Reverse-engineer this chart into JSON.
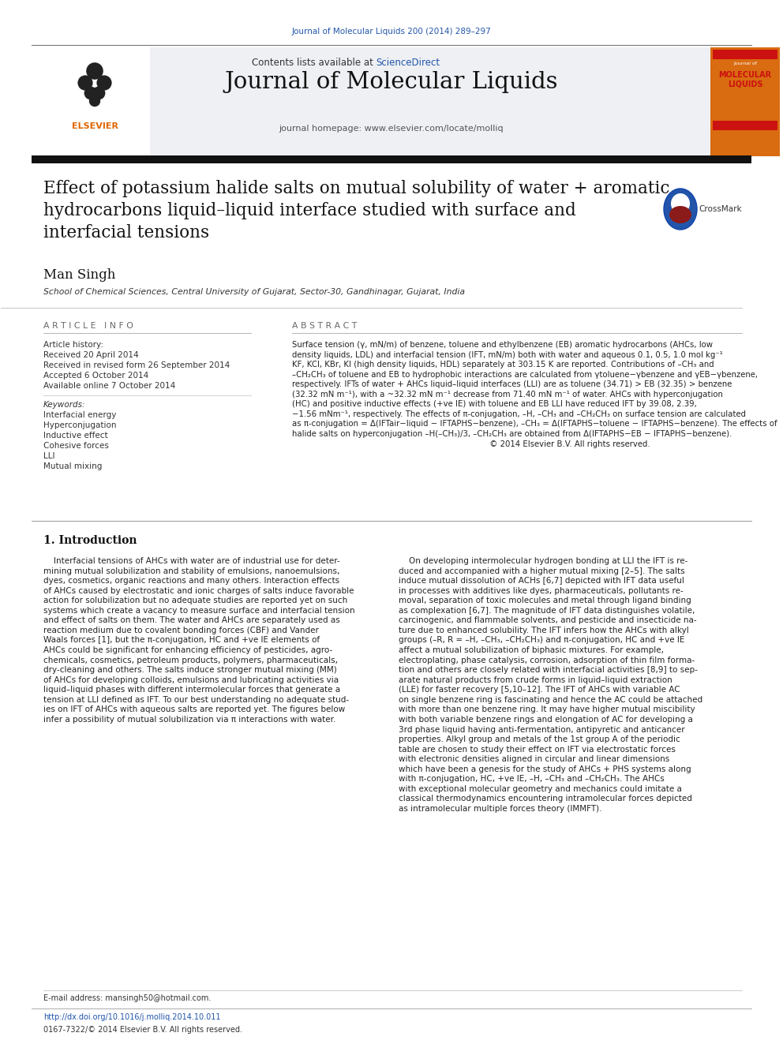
{
  "page_width": 9.92,
  "page_height": 13.23,
  "bg_color": "#ffffff",
  "top_citation": "Journal of Molecular Liquids 200 (2014) 289–297",
  "top_citation_color": "#2255aa",
  "journal_name": "Journal of Molecular Liquids",
  "contents_text": "Contents lists available at ",
  "sciencedirect_text": "ScienceDirect",
  "homepage_text": "journal homepage: www.elsevier.com/locate/molliq",
  "header_bg_color": "#eef0f4",
  "orange_bar_color": "#d96b10",
  "thick_bar_color": "#222222",
  "article_title": "Effect of potassium halide salts on mutual solubility of water + aromatic\nhydrocarbons liquid–liquid interface studied with surface and\ninterfacial tensions",
  "author_name": "Man Singh",
  "affiliation": "School of Chemical Sciences, Central University of Gujarat, Sector-30, Gandhinagar, Gujarat, India",
  "article_info_header": "A R T I C L E   I N F O",
  "abstract_header": "A B S T R A C T",
  "article_history_label": "Article history:",
  "received_1": "Received 20 April 2014",
  "received_2": "Received in revised form 26 September 2014",
  "accepted": "Accepted 6 October 2014",
  "available": "Available online 7 October 2014",
  "keywords_label": "Keywords:",
  "keywords": [
    "Interfacial energy",
    "Hyperconjugation",
    "Inductive effect",
    "Cohesive forces",
    "LLI",
    "Mutual mixing"
  ],
  "abstract_text": "Surface tension (γ, mN/m) of benzene, toluene and ethylbenzene (EB) aromatic hydrocarbons (AHCs, low\ndensity liquids, LDL) and interfacial tension (IFT, mN/m) both with water and aqueous 0.1, 0.5, 1.0 mol kg⁻¹\nKF, KCl, KBr, KI (high density liquids, HDL) separately at 303.15 K are reported. Contributions of –CH₃ and\n–CH₂CH₃ of toluene and EB to hydrophobic interactions are calculated from γtoluene−γbenzene and γEB−γbenzene,\nrespectively. IFTs of water + AHCs liquid–liquid interfaces (LLI) are as toluene (34.71) > EB (32.35) > benzene\n(32.32 mN m⁻¹), with a ~32.32 mN m⁻¹ decrease from 71.40 mN m⁻¹ of water. AHCs with hyperconjugation\n(HC) and positive inductive effects (+ve IE) with toluene and EB LLI have reduced IFT by 39.08, 2.39,\n−1.56 mNm⁻¹, respectively. The effects of π-conjugation, –H, –CH₃ and –CH₂CH₃ on surface tension are calculated\nas π-conjugation = Δ(IFTair−liquid − IFTAPHS−benzene), –CH₃ = Δ(IFTAPHS−toluene − IFTAPHS−benzene). The effects of\nhalide salts on hyperconjugation –H(–CH₃)/3, –CH₂CH₃ are obtained from Δ(IFTAPHS−EB − IFTAPHS−benzene).\n                                                                             © 2014 Elsevier B.V. All rights reserved.",
  "intro_header": "1. Introduction",
  "intro_col1": "    Interfacial tensions of AHCs with water are of industrial use for deter-\nmining mutual solubilization and stability of emulsions, nanoemulsions,\ndyes, cosmetics, organic reactions and many others. Interaction effects\nof AHCs caused by electrostatic and ionic charges of salts induce favorable\naction for solubilization but no adequate studies are reported yet on such\nsystems which create a vacancy to measure surface and interfacial tension\nand effect of salts on them. The water and AHCs are separately used as\nreaction medium due to covalent bonding forces (CBF) and Vander\nWaals forces [1], but the π-conjugation, HC and +ve IE elements of\nAHCs could be significant for enhancing efficiency of pesticides, agro-\nchemicals, cosmetics, petroleum products, polymers, pharmaceuticals,\ndry-cleaning and others. The salts induce stronger mutual mixing (MM)\nof AHCs for developing colloids, emulsions and lubricating activities via\nliquid–liquid phases with different intermolecular forces that generate a\ntension at LLI defined as IFT. To our best understanding no adequate stud-\nies on IFT of AHCs with aqueous salts are reported yet. The figures below\ninfer a possibility of mutual solubilization via π interactions with water.",
  "intro_col2": "    On developing intermolecular hydrogen bonding at LLI the IFT is re-\nduced and accompanied with a higher mutual mixing [2–5]. The salts\ninduce mutual dissolution of ACHs [6,7] depicted with IFT data useful\nin processes with additives like dyes, pharmaceuticals, pollutants re-\nmoval, separation of toxic molecules and metal through ligand binding\nas complexation [6,7]. The magnitude of IFT data distinguishes volatile,\ncarcinogenic, and flammable solvents, and pesticide and insecticide na-\nture due to enhanced solubility. The IFT infers how the AHCs with alkyl\ngroups (–R, R = –H, –CH₃, –CH₂CH₃) and π-conjugation, HC and +ve IE\naffect a mutual solubilization of biphasic mixtures. For example,\nelectroplating, phase catalysis, corrosion, adsorption of thin film forma-\ntion and others are closely related with interfacial activities [8,9] to sep-\narate natural products from crude forms in liquid–liquid extraction\n(LLE) for faster recovery [5,10–12]. The IFT of AHCs with variable AC\non single benzene ring is fascinating and hence the AC could be attached\nwith more than one benzene ring. It may have higher mutual miscibility\nwith both variable benzene rings and elongation of AC for developing a\n3rd phase liquid having anti-fermentation, antipyretic and anticancer\nproperties. Alkyl group and metals of the 1st group A of the periodic\ntable are chosen to study their effect on IFT via electrostatic forces\nwith electronic densities aligned in circular and linear dimensions\nwhich have been a genesis for the study of AHCs + PHS systems along\nwith π-conjugation, HC, +ve IE, –H, –CH₃ and –CH₂CH₃. The AHCs\nwith exceptional molecular geometry and mechanics could imitate a\nclassical thermodynamics encountering intramolecular forces depicted\nas intramolecular multiple forces theory (IMMFT).",
  "email_text": "E-mail address: mansingh50@hotmail.com.",
  "doi_text": "http://dx.doi.org/10.1016/j.molliq.2014.10.011",
  "footer_text": "0167-7322/© 2014 Elsevier B.V. All rights reserved.",
  "sciencedirect_color": "#2255aa",
  "ref_color": "#2255aa",
  "elsevier_color": "#dd6600"
}
